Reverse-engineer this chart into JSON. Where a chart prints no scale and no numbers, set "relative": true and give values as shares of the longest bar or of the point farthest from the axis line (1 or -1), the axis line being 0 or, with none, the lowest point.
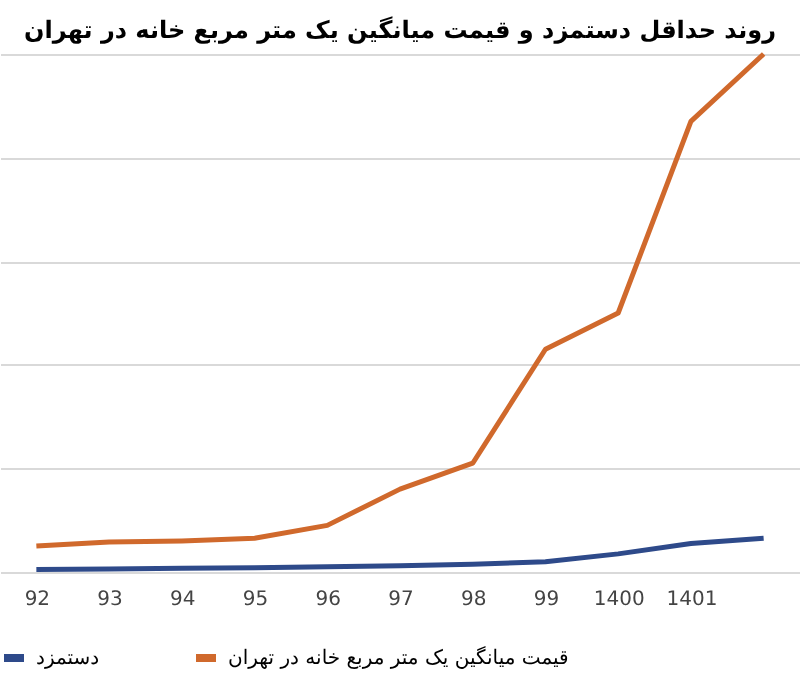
{
  "chart_data": {
    "type": "line",
    "title": "روند حداقل دستمزد و قیمت میانگین یک متر مربع خانه در تهران",
    "relative": true,
    "categories": [
      "92",
      "93",
      "94",
      "95",
      "96",
      "97",
      "98",
      "99",
      "1400",
      "1401",
      null
    ],
    "series": [
      {
        "name": "دستمزد",
        "color": "#2e4a8a",
        "values": [
          0.005,
          0.006,
          0.007,
          0.008,
          0.01,
          0.012,
          0.015,
          0.02,
          0.035,
          0.055,
          0.065
        ]
      },
      {
        "name": "قیمت میانگین یک متر مربع  خانه در تهران",
        "color": "#d0692c",
        "values": [
          0.05,
          0.058,
          0.06,
          0.065,
          0.09,
          0.16,
          0.21,
          0.43,
          0.5,
          0.87,
          1
        ]
      }
    ],
    "grid": "y",
    "legend": "bottom",
    "marker": "none",
    "line_style": "solid"
  }
}
